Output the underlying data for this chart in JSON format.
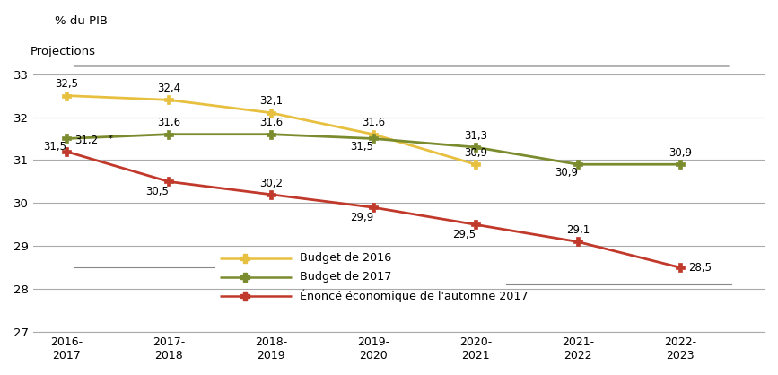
{
  "x_labels": [
    "2016-\n2017",
    "2017-\n2018",
    "2018-\n2019",
    "2019-\n2020",
    "2020-\n2021",
    "2021-\n2022",
    "2022-\n2023"
  ],
  "x_positions": [
    0,
    1,
    2,
    3,
    4,
    5,
    6
  ],
  "budget_2016": [
    32.5,
    32.4,
    32.1,
    31.6,
    30.9,
    null,
    null
  ],
  "budget_2017": [
    31.5,
    31.6,
    31.6,
    31.5,
    31.3,
    30.9,
    30.9
  ],
  "enonce_2017": [
    31.2,
    30.5,
    30.2,
    29.9,
    29.5,
    29.1,
    28.5
  ],
  "budget_2016_color": "#E8C040",
  "budget_2017_color": "#7A8C2E",
  "enonce_2017_color": "#C0392B",
  "ylim": [
    27,
    33.8
  ],
  "yticks": [
    27,
    28,
    29,
    30,
    31,
    32,
    33
  ],
  "projection_label": "Projections",
  "pib_label": "% du PIB",
  "legend_budget2016": "Budget de 2016",
  "legend_budget2017": "Budget de 2017",
  "legend_enonce": "Énoncé économique de l'automne 2017"
}
